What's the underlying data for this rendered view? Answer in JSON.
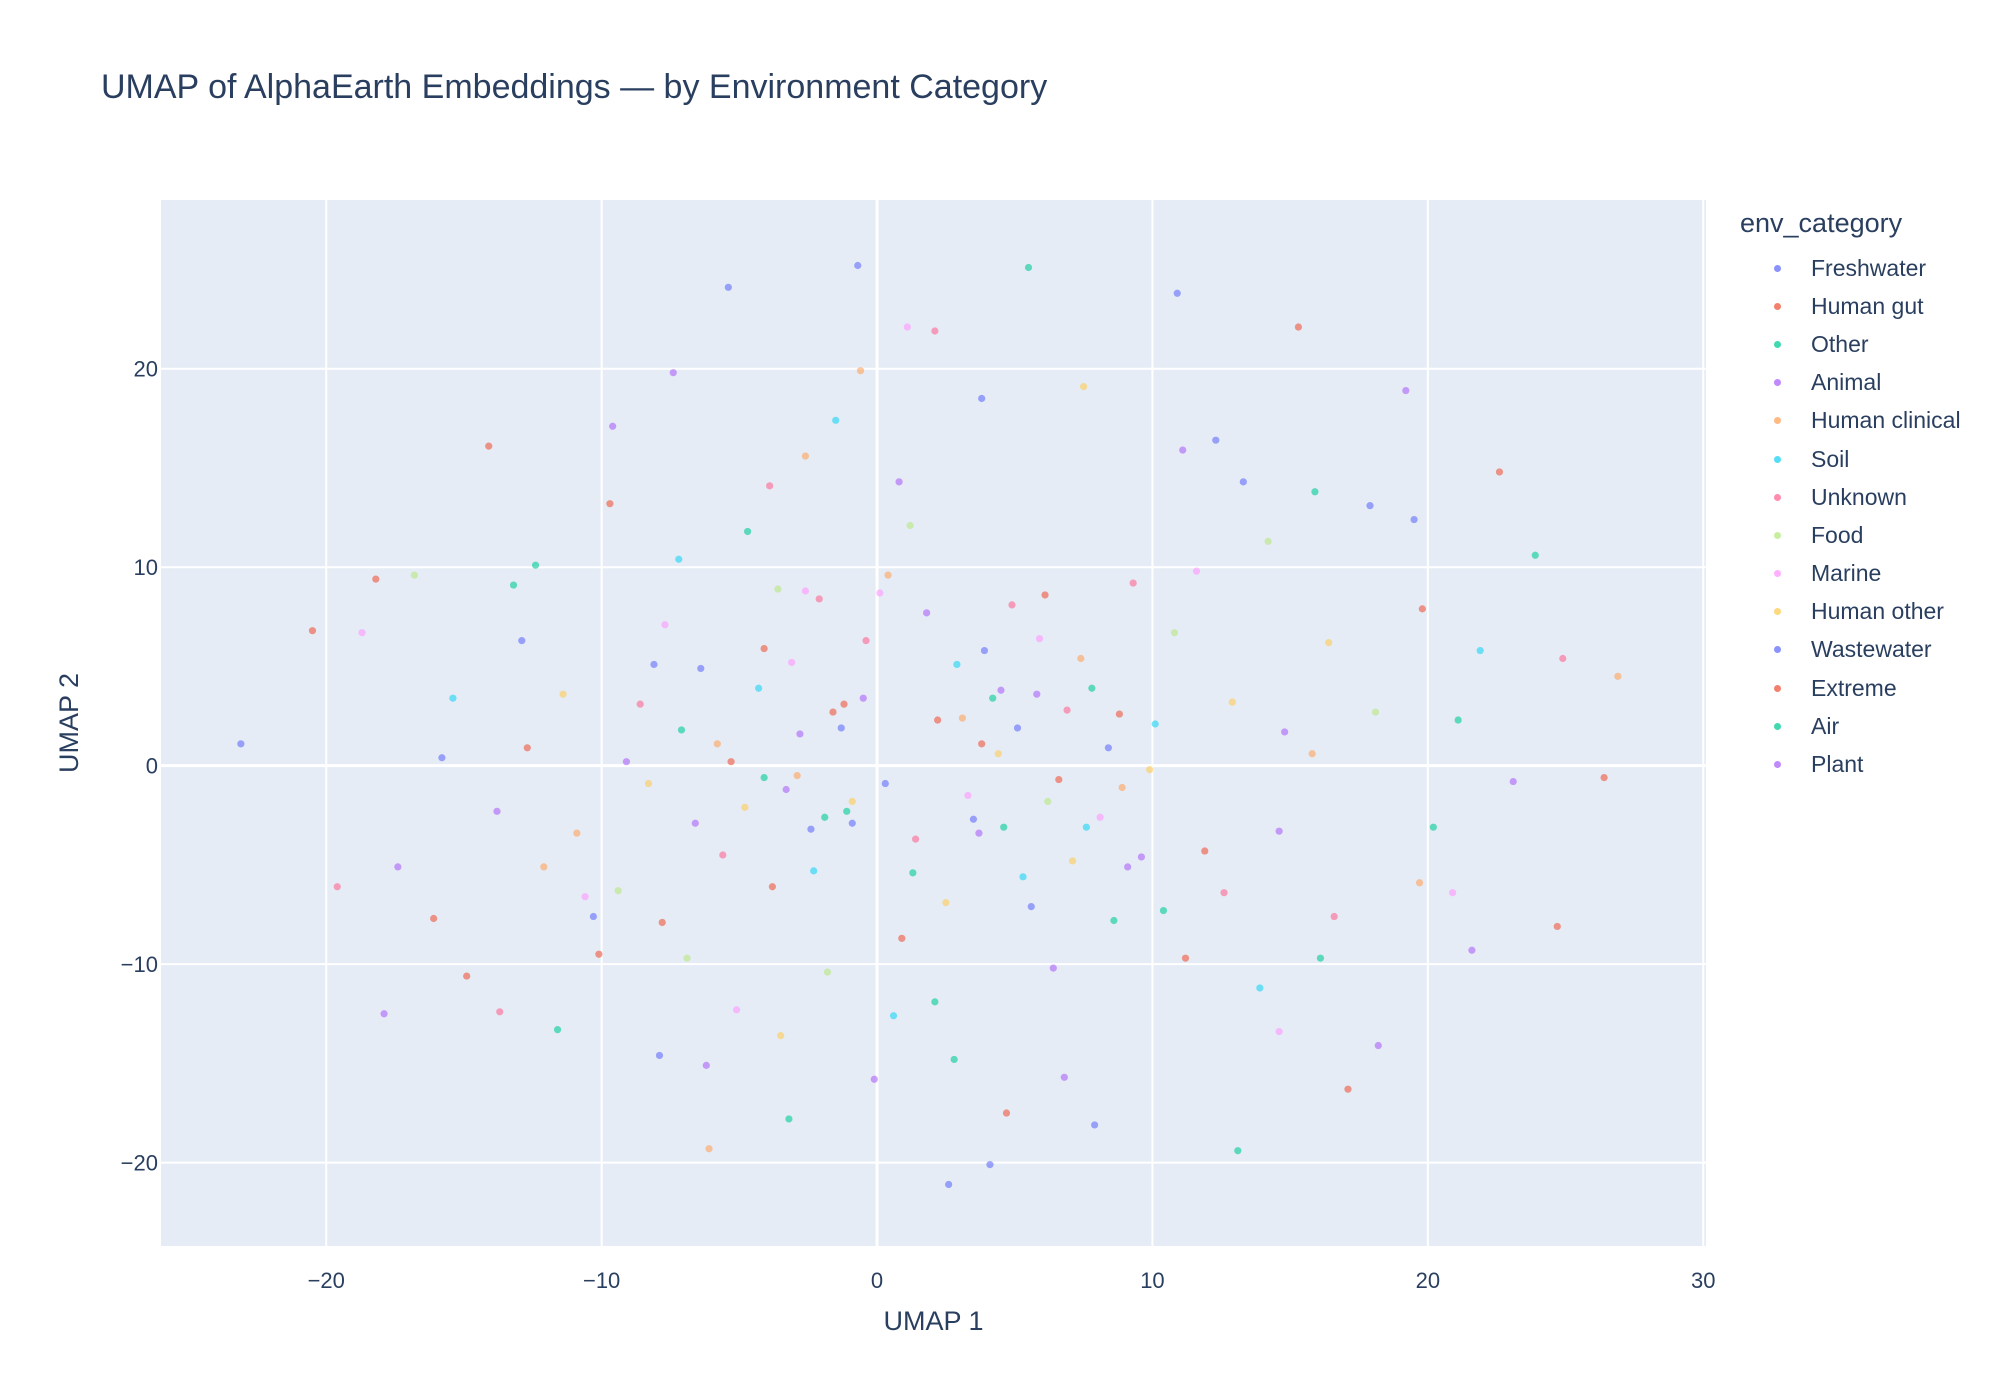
{
  "chart_data": {
    "type": "scatter",
    "title": "UMAP of AlphaEarth Embeddings — by Environment Category",
    "xlabel": "UMAP 1",
    "ylabel": "UMAP 2",
    "xlim": [
      -26,
      30.1
    ],
    "ylim": [
      -24.2,
      28.5
    ],
    "xticks": [
      -20,
      -10,
      0,
      10,
      20,
      30
    ],
    "yticks": [
      -20,
      -10,
      0,
      10,
      20
    ],
    "xtick_labels": [
      "−20",
      "−10",
      "0",
      "10",
      "20",
      "30"
    ],
    "ytick_labels": [
      "−20",
      "−10",
      "0",
      "10",
      "20"
    ],
    "grid": true,
    "plot_background": "#e5ecf6",
    "legend": {
      "title": "env_category",
      "placement": "right",
      "entries": [
        {
          "name": "Freshwater",
          "color": "#636efa"
        },
        {
          "name": "Human gut",
          "color": "#ef553b"
        },
        {
          "name": "Other",
          "color": "#00cc96"
        },
        {
          "name": "Animal",
          "color": "#ab63fa"
        },
        {
          "name": "Human clinical",
          "color": "#ffa15a"
        },
        {
          "name": "Soil",
          "color": "#19d3f3"
        },
        {
          "name": "Unknown",
          "color": "#ff6692"
        },
        {
          "name": "Food",
          "color": "#b6e880"
        },
        {
          "name": "Marine",
          "color": "#ff97ff"
        },
        {
          "name": "Human other",
          "color": "#fecb52"
        },
        {
          "name": "Wastewater",
          "color": "#636efa"
        },
        {
          "name": "Extreme",
          "color": "#ef553b"
        },
        {
          "name": "Air",
          "color": "#00cc96"
        },
        {
          "name": "Plant",
          "color": "#ab63fa"
        }
      ]
    },
    "series": [
      {
        "name": "Freshwater",
        "color": "#636efa",
        "values": [
          [
            -23.1,
            1.1
          ],
          [
            -5.4,
            24.1
          ],
          [
            -0.7,
            25.2
          ],
          [
            4.1,
            -20.1
          ],
          [
            10.9,
            23.8
          ],
          [
            -15.8,
            0.4
          ],
          [
            3.9,
            5.8
          ],
          [
            -0.9,
            -2.9
          ],
          [
            5.6,
            -7.1
          ],
          [
            12.3,
            16.4
          ],
          [
            -8.1,
            5.1
          ],
          [
            2.6,
            -21.1
          ],
          [
            17.9,
            13.1
          ],
          [
            -12.9,
            6.3
          ],
          [
            7.9,
            -18.1
          ]
        ]
      },
      {
        "name": "Human gut",
        "color": "#ef553b",
        "values": [
          [
            -20.5,
            6.8
          ],
          [
            -18.2,
            9.4
          ],
          [
            -7.8,
            -7.9
          ],
          [
            3.8,
            1.1
          ],
          [
            15.3,
            22.1
          ],
          [
            26.4,
            -0.6
          ],
          [
            24.7,
            -8.1
          ],
          [
            -4.1,
            5.9
          ],
          [
            -1.2,
            3.1
          ],
          [
            6.1,
            8.6
          ],
          [
            11.9,
            -4.3
          ],
          [
            -10.1,
            -9.5
          ],
          [
            0.9,
            -8.7
          ],
          [
            19.8,
            7.9
          ],
          [
            -14.1,
            16.1
          ]
        ]
      },
      {
        "name": "Other",
        "color": "#00cc96",
        "values": [
          [
            5.5,
            25.1
          ],
          [
            23.9,
            10.6
          ],
          [
            -13.2,
            9.1
          ],
          [
            -1.1,
            -2.3
          ],
          [
            4.6,
            -3.1
          ],
          [
            8.6,
            -7.8
          ],
          [
            -11.6,
            -13.3
          ],
          [
            21.1,
            2.3
          ],
          [
            -4.7,
            11.8
          ],
          [
            13.1,
            -19.4
          ],
          [
            2.1,
            -11.9
          ],
          [
            16.1,
            -9.7
          ]
        ]
      },
      {
        "name": "Animal",
        "color": "#ab63fa",
        "values": [
          [
            -7.4,
            19.8
          ],
          [
            9.6,
            -4.6
          ],
          [
            -3.3,
            -1.2
          ],
          [
            1.8,
            7.7
          ],
          [
            4.5,
            3.8
          ],
          [
            -17.4,
            -5.1
          ],
          [
            14.6,
            -3.3
          ],
          [
            -9.1,
            0.2
          ],
          [
            18.2,
            -14.1
          ],
          [
            6.4,
            -10.2
          ],
          [
            -0.1,
            -15.8
          ],
          [
            21.6,
            -9.3
          ],
          [
            -6.2,
            -15.1
          ],
          [
            11.1,
            15.9
          ]
        ]
      },
      {
        "name": "Human clinical",
        "color": "#ffa15a",
        "values": [
          [
            -0.6,
            19.9
          ],
          [
            -6.1,
            -19.3
          ],
          [
            -2.9,
            -0.5
          ],
          [
            -5.8,
            1.1
          ],
          [
            7.4,
            5.4
          ],
          [
            15.8,
            0.6
          ],
          [
            26.9,
            4.5
          ],
          [
            -10.9,
            -3.4
          ],
          [
            3.1,
            2.4
          ],
          [
            19.7,
            -5.9
          ],
          [
            -12.1,
            -5.1
          ],
          [
            -2.6,
            15.6
          ],
          [
            8.9,
            -1.1
          ],
          [
            0.4,
            9.6
          ]
        ]
      },
      {
        "name": "Soil",
        "color": "#19d3f3",
        "values": [
          [
            2.9,
            5.1
          ],
          [
            -7.2,
            10.4
          ],
          [
            7.6,
            -3.1
          ],
          [
            -2.3,
            -5.3
          ],
          [
            10.1,
            2.1
          ],
          [
            -4.3,
            3.9
          ],
          [
            5.3,
            -5.6
          ],
          [
            -15.4,
            3.4
          ],
          [
            13.9,
            -11.2
          ],
          [
            -1.5,
            17.4
          ],
          [
            21.9,
            5.8
          ],
          [
            0.6,
            -12.6
          ]
        ]
      },
      {
        "name": "Unknown",
        "color": "#ff6692",
        "values": [
          [
            -2.1,
            8.4
          ],
          [
            -0.4,
            6.3
          ],
          [
            4.9,
            8.1
          ],
          [
            9.3,
            9.2
          ],
          [
            -5.6,
            -4.5
          ],
          [
            1.4,
            -3.7
          ],
          [
            6.9,
            2.8
          ],
          [
            -8.6,
            3.1
          ],
          [
            12.6,
            -6.4
          ],
          [
            -13.7,
            -12.4
          ],
          [
            24.9,
            5.4
          ],
          [
            -3.9,
            14.1
          ],
          [
            16.6,
            -7.6
          ],
          [
            2.1,
            21.9
          ],
          [
            -19.6,
            -6.1
          ]
        ]
      },
      {
        "name": "Food",
        "color": "#b6e880",
        "values": [
          [
            1.2,
            12.1
          ],
          [
            -3.6,
            8.9
          ],
          [
            6.2,
            -1.8
          ],
          [
            -9.4,
            -6.3
          ],
          [
            10.8,
            6.7
          ],
          [
            -6.9,
            -9.7
          ],
          [
            18.1,
            2.7
          ],
          [
            -1.8,
            -10.4
          ],
          [
            14.2,
            11.3
          ],
          [
            -16.8,
            9.6
          ]
        ]
      },
      {
        "name": "Marine",
        "color": "#ff97ff",
        "values": [
          [
            -2.6,
            8.8
          ],
          [
            0.1,
            8.7
          ],
          [
            3.3,
            -1.5
          ],
          [
            -3.1,
            5.2
          ],
          [
            5.9,
            6.4
          ],
          [
            8.1,
            -2.6
          ],
          [
            -7.7,
            7.1
          ],
          [
            1.1,
            22.1
          ],
          [
            -10.6,
            -6.6
          ],
          [
            20.9,
            -6.4
          ],
          [
            11.6,
            9.8
          ],
          [
            -5.1,
            -12.3
          ],
          [
            14.6,
            -13.4
          ],
          [
            -18.7,
            6.7
          ]
        ]
      },
      {
        "name": "Human other",
        "color": "#fecb52",
        "values": [
          [
            -0.9,
            -1.8
          ],
          [
            4.4,
            0.6
          ],
          [
            -4.8,
            -2.1
          ],
          [
            7.1,
            -4.8
          ],
          [
            -8.3,
            -0.9
          ],
          [
            9.9,
            -0.2
          ],
          [
            2.5,
            -6.9
          ],
          [
            -11.4,
            3.6
          ],
          [
            16.4,
            6.2
          ],
          [
            -3.5,
            -13.6
          ],
          [
            12.9,
            3.2
          ],
          [
            7.5,
            19.1
          ]
        ]
      },
      {
        "name": "Wastewater",
        "color": "#636efa",
        "values": [
          [
            -2.4,
            -3.2
          ],
          [
            0.3,
            -0.9
          ],
          [
            3.5,
            -2.7
          ],
          [
            -6.4,
            4.9
          ],
          [
            5.1,
            1.9
          ],
          [
            -1.3,
            1.9
          ],
          [
            8.4,
            0.9
          ],
          [
            -10.3,
            -7.6
          ],
          [
            13.3,
            14.3
          ],
          [
            -7.9,
            -14.6
          ],
          [
            19.5,
            12.4
          ],
          [
            3.8,
            18.5
          ]
        ]
      },
      {
        "name": "Extreme",
        "color": "#ef553b",
        "values": [
          [
            -1.6,
            2.7
          ],
          [
            2.2,
            2.3
          ],
          [
            -5.3,
            0.2
          ],
          [
            6.6,
            -0.7
          ],
          [
            -3.8,
            -6.1
          ],
          [
            8.8,
            2.6
          ],
          [
            -12.7,
            0.9
          ],
          [
            11.2,
            -9.7
          ],
          [
            -9.7,
            13.2
          ],
          [
            17.1,
            -16.3
          ],
          [
            4.7,
            -17.5
          ],
          [
            -16.1,
            -7.7
          ],
          [
            22.6,
            14.8
          ],
          [
            -14.9,
            -10.6
          ]
        ]
      },
      {
        "name": "Air",
        "color": "#00cc96",
        "values": [
          [
            -1.9,
            -2.6
          ],
          [
            4.2,
            3.4
          ],
          [
            -4.1,
            -0.6
          ],
          [
            7.8,
            3.9
          ],
          [
            1.3,
            -5.4
          ],
          [
            -7.1,
            1.8
          ],
          [
            10.4,
            -7.3
          ],
          [
            -12.4,
            10.1
          ],
          [
            15.9,
            13.8
          ],
          [
            -3.2,
            -17.8
          ],
          [
            20.2,
            -3.1
          ],
          [
            2.8,
            -14.8
          ]
        ]
      },
      {
        "name": "Plant",
        "color": "#ab63fa",
        "values": [
          [
            -0.5,
            3.4
          ],
          [
            3.7,
            -3.4
          ],
          [
            -2.8,
            1.6
          ],
          [
            5.8,
            3.6
          ],
          [
            -6.6,
            -2.9
          ],
          [
            9.1,
            -5.1
          ],
          [
            0.8,
            14.3
          ],
          [
            -13.8,
            -2.3
          ],
          [
            14.8,
            1.7
          ],
          [
            -9.6,
            17.1
          ],
          [
            19.2,
            18.9
          ],
          [
            -17.9,
            -12.5
          ],
          [
            6.8,
            -15.7
          ],
          [
            23.1,
            -0.8
          ]
        ]
      }
    ]
  }
}
